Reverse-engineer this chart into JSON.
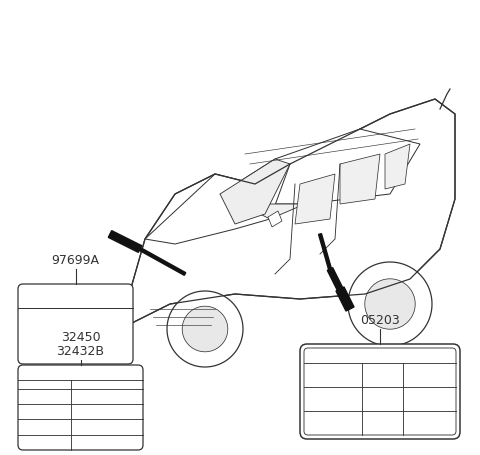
{
  "bg_color": "#ffffff",
  "line_color": "#333333",
  "car_color": "#222222",
  "label_97699A": "97699A",
  "label_05203": "05203",
  "label_32450": "32450",
  "label_32432B": "32432B",
  "font_size_label": 8,
  "fig_width": 4.8,
  "fig_height": 4.56,
  "dpi": 100
}
